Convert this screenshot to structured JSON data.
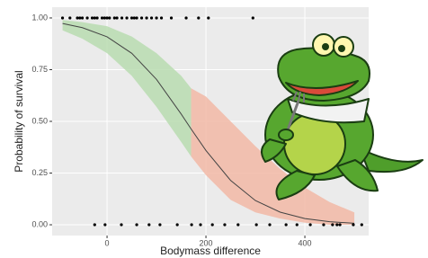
{
  "chart_data": {
    "type": "line",
    "xlabel": "Bodymass difference",
    "ylabel": "Probability of survival",
    "xlim": [
      -111,
      529
    ],
    "ylim": [
      -0.052,
      1.052
    ],
    "xticks": [
      0,
      200,
      400
    ],
    "yticks": [
      {
        "value": 0,
        "label": "0.00"
      },
      {
        "value": 0.25,
        "label": "0.25"
      },
      {
        "value": 0.5,
        "label": "0.50"
      },
      {
        "value": 0.75,
        "label": "0.75"
      },
      {
        "value": 1,
        "label": "1.00"
      }
    ],
    "grid": true,
    "fit": {
      "color": "#444444",
      "x": [
        -90,
        -50,
        0,
        50,
        100,
        150,
        170,
        200,
        250,
        300,
        350,
        400,
        450,
        500
      ],
      "values": [
        0.973,
        0.953,
        0.909,
        0.829,
        0.703,
        0.535,
        0.463,
        0.359,
        0.214,
        0.117,
        0.061,
        0.03,
        0.015,
        0.007
      ]
    },
    "ribbons": [
      {
        "color": "#b9dcb0",
        "x": [
          -90,
          -50,
          0,
          50,
          100,
          150,
          170
        ],
        "lower": [
          0.94,
          0.9,
          0.83,
          0.72,
          0.57,
          0.4,
          0.33
        ],
        "upper": [
          0.99,
          0.98,
          0.96,
          0.91,
          0.83,
          0.72,
          0.66
        ]
      },
      {
        "color": "#f2b9a6",
        "x": [
          170,
          200,
          250,
          300,
          350,
          400,
          450,
          500
        ],
        "lower": [
          0.33,
          0.24,
          0.12,
          0.06,
          0.03,
          0.01,
          0,
          0
        ],
        "upper": [
          0.66,
          0.62,
          0.5,
          0.38,
          0.27,
          0.18,
          0.11,
          0.06
        ]
      }
    ],
    "points": {
      "color": "#000000",
      "x": [
        -90,
        -75,
        -60,
        -55,
        -50,
        -40,
        -30,
        -25,
        -20,
        -10,
        -5,
        0,
        5,
        15,
        20,
        30,
        40,
        50,
        55,
        60,
        70,
        80,
        90,
        100,
        110,
        130,
        160,
        185,
        205,
        295,
        -25,
        -4,
        29,
        60,
        85,
        107,
        142,
        171,
        189,
        213,
        238,
        265,
        302,
        329,
        362,
        384,
        411,
        438,
        456,
        465,
        471,
        498,
        515
      ],
      "y": [
        1,
        1,
        1,
        1,
        1,
        1,
        1,
        1,
        1,
        1,
        1,
        1,
        1,
        1,
        1,
        1,
        1,
        1,
        1,
        1,
        1,
        1,
        1,
        1,
        1,
        1,
        1,
        1,
        1,
        1,
        0,
        0,
        0,
        0,
        0,
        0,
        0,
        0,
        0,
        0,
        0,
        0,
        0,
        0,
        0,
        0,
        0,
        0,
        0,
        0,
        0,
        0,
        0
      ]
    }
  }
}
